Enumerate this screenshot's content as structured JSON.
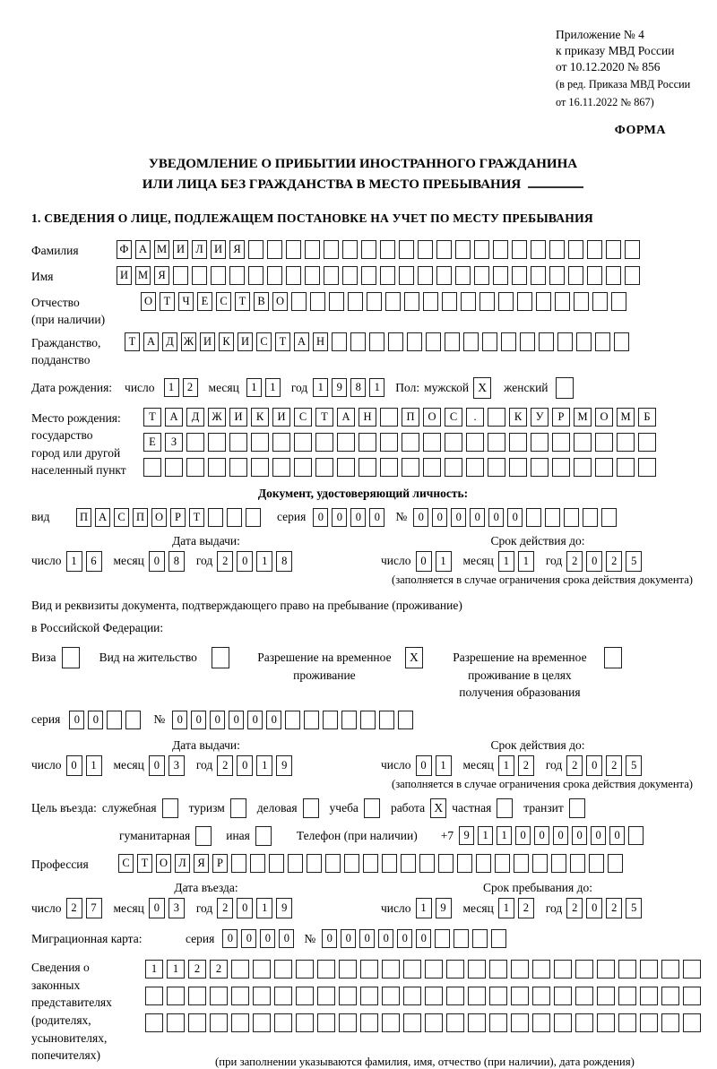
{
  "header": {
    "appendix_lines": [
      "Приложение № 4",
      "к приказу МВД России",
      "от 10.12.2020 № 856"
    ],
    "amendment_lines": [
      "(в ред. Приказа МВД России",
      "от 16.11.2022 № 867)"
    ],
    "form_label": "ФОРМА"
  },
  "title": {
    "line1": "УВЕДОМЛЕНИЕ О ПРИБЫТИИ ИНОСТРАННОГО ГРАЖДАНИНА",
    "line2": "ИЛИ ЛИЦА БЕЗ ГРАЖДАНСТВА В МЕСТО ПРЕБЫВАНИЯ"
  },
  "section1_heading": "1. СВЕДЕНИЯ О ЛИЦЕ, ПОДЛЕЖАЩЕМ ПОСТАНОВКЕ НА УЧЕТ ПО МЕСТУ ПРЕБЫВАНИЯ",
  "date_labels": {
    "day": "число",
    "month": "месяц",
    "year": "год"
  },
  "person": {
    "surname": {
      "label": "Фамилия",
      "cells": {
        "count": 28,
        "value": "ФАМИЛИЯ"
      }
    },
    "given_name": {
      "label": "Имя",
      "cells": {
        "count": 28,
        "value": "ИМЯ"
      }
    },
    "patronymic": {
      "label": "Отчество",
      "sublabel": "(при наличии)",
      "cells": {
        "count": 26,
        "value": "ОТЧЕСТВО"
      }
    },
    "citizenship": {
      "label": "Гражданство,",
      "sublabel": "подданство",
      "cells": {
        "count": 27,
        "value": "ТАДЖИКИСТАН"
      }
    },
    "birth_date": {
      "label": "Дата рождения:",
      "day": {
        "count": 2,
        "value": "12"
      },
      "month": {
        "count": 2,
        "value": "11"
      },
      "year": {
        "count": 4,
        "value": "1981"
      }
    },
    "sex": {
      "label": "Пол:",
      "male_label": "мужской",
      "male": "X",
      "female_label": "женский",
      "female": ""
    },
    "birth_place": {
      "label_lines": [
        "Место рождения:",
        "государство",
        "город или другой",
        "населенный пункт"
      ],
      "row1": {
        "count": 24,
        "value": "ТАДЖИКИСТАН ПОС. КУРМОМБ"
      },
      "row2": {
        "count": 24,
        "value": "ЕЗ"
      },
      "row3": {
        "count": 24,
        "value": ""
      }
    }
  },
  "identity_doc": {
    "heading": "Документ, удостоверяющий личность:",
    "kind_label": "вид",
    "kind": {
      "count": 10,
      "value": "ПАСПОРТ"
    },
    "series_label": "серия",
    "series": {
      "count": 4,
      "value": "0000"
    },
    "number_label": "№",
    "number": {
      "count": 11,
      "value": "000000"
    },
    "issue_label": "Дата выдачи:",
    "issue": {
      "day": {
        "count": 2,
        "value": "16"
      },
      "month": {
        "count": 2,
        "value": "08"
      },
      "year": {
        "count": 4,
        "value": "2018"
      }
    },
    "valid_label": "Срок действия до:",
    "valid": {
      "day": {
        "count": 2,
        "value": "01"
      },
      "month": {
        "count": 2,
        "value": "11"
      },
      "year": {
        "count": 4,
        "value": "2025"
      }
    },
    "note": "(заполняется в случае ограничения срока действия документа)"
  },
  "residence_doc": {
    "intro_line1": "Вид и реквизиты документа, подтверждающего право на пребывание (проживание)",
    "intro_line2": "в Российской Федерации:",
    "options": [
      {
        "label": "Виза",
        "checked": ""
      },
      {
        "label": "Вид на жительство",
        "checked": ""
      },
      {
        "label": "Разрешение на временное проживание",
        "checked": "X"
      },
      {
        "label": "Разрешение на временное проживание в целях получения образования",
        "checked": ""
      }
    ],
    "series_label": "серия",
    "series": {
      "count": 4,
      "value": "00"
    },
    "number_label": "№",
    "number": {
      "count": 13,
      "value": "000000"
    },
    "issue_label": "Дата выдачи:",
    "issue": {
      "day": {
        "count": 2,
        "value": "01"
      },
      "month": {
        "count": 2,
        "value": "03"
      },
      "year": {
        "count": 4,
        "value": "2019"
      }
    },
    "valid_label": "Срок действия до:",
    "valid": {
      "day": {
        "count": 2,
        "value": "01"
      },
      "month": {
        "count": 2,
        "value": "12"
      },
      "year": {
        "count": 4,
        "value": "2025"
      }
    },
    "note": "(заполняется в случае ограничения срока действия документа)"
  },
  "visit": {
    "purpose_label": "Цель въезда:",
    "purposes": [
      {
        "label": "служебная",
        "checked": ""
      },
      {
        "label": "туризм",
        "checked": ""
      },
      {
        "label": "деловая",
        "checked": ""
      },
      {
        "label": "учеба",
        "checked": ""
      },
      {
        "label": "работа",
        "checked": "X"
      },
      {
        "label": "частная",
        "checked": ""
      },
      {
        "label": "транзит",
        "checked": ""
      },
      {
        "label": "гуманитарная",
        "checked": ""
      },
      {
        "label": "иная",
        "checked": ""
      }
    ],
    "phone_label": "Телефон (при наличии)",
    "phone_prefix": "+7",
    "phone": {
      "count": 10,
      "value": "911000000"
    },
    "profession_label": "Профессия",
    "profession": {
      "count": 27,
      "value": "СТОЛЯР"
    },
    "entry_label": "Дата въезда:",
    "entry": {
      "day": {
        "count": 2,
        "value": "27"
      },
      "month": {
        "count": 2,
        "value": "03"
      },
      "year": {
        "count": 4,
        "value": "2019"
      }
    },
    "stay_label": "Срок пребывания до:",
    "stay": {
      "day": {
        "count": 2,
        "value": "19"
      },
      "month": {
        "count": 2,
        "value": "12"
      },
      "year": {
        "count": 4,
        "value": "2025"
      }
    }
  },
  "migration_card": {
    "label": "Миграционная карта:",
    "series_label": "серия",
    "series": {
      "count": 4,
      "value": "0000"
    },
    "number_label": "№",
    "number": {
      "count": 10,
      "value": "000000"
    }
  },
  "legal_reps": {
    "label_lines": [
      "Сведения о",
      "законных",
      "представителях",
      "(родителях,",
      "усыновителях,",
      "попечителях)"
    ],
    "row1": {
      "count": 26,
      "value": "1122"
    },
    "row2": {
      "count": 26,
      "value": ""
    },
    "row3": {
      "count": 26,
      "value": ""
    },
    "note": "(при заполнении указываются фамилия, имя, отчество (при наличии), дата рождения)"
  }
}
